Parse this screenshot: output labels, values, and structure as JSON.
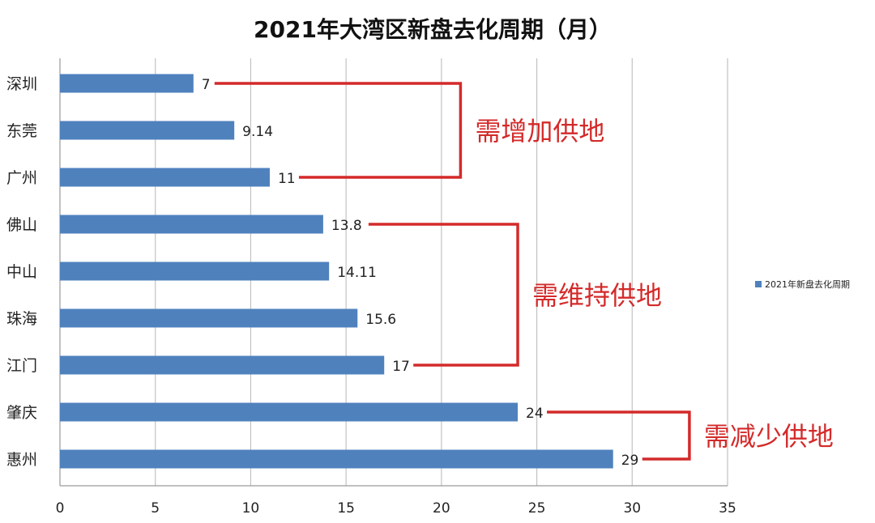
{
  "chart_data": {
    "type": "bar",
    "orientation": "horizontal",
    "title": "2021年大湾区新盘去化周期（月）",
    "categories": [
      "深圳",
      "东莞",
      "广州",
      "佛山",
      "中山",
      "珠海",
      "江门",
      "肇庆",
      "惠州"
    ],
    "series": [
      {
        "name": "2021年新盘去化周期",
        "values": [
          7,
          9.14,
          11,
          13.8,
          14.11,
          15.6,
          17,
          24,
          29
        ],
        "labels": [
          "7",
          "9.14",
          "11",
          "13.8",
          "14.11",
          "15.6",
          "17",
          "24",
          "29"
        ],
        "color": "#4f81bd"
      }
    ],
    "xlim": [
      0,
      35
    ],
    "xticks": [
      0,
      5,
      10,
      15,
      20,
      25,
      30,
      35
    ],
    "grid": true,
    "legend_position": "right",
    "annotations": [
      {
        "text": "需增加供地",
        "from_category": 0,
        "to_category": 2,
        "bracket_x": 21
      },
      {
        "text": "需维持供地",
        "from_category": 3,
        "to_category": 6,
        "bracket_x": 24
      },
      {
        "text": "需减少供地",
        "from_category": 7,
        "to_category": 8,
        "bracket_x": 33
      }
    ],
    "annotation_color": "#d42a2a"
  }
}
